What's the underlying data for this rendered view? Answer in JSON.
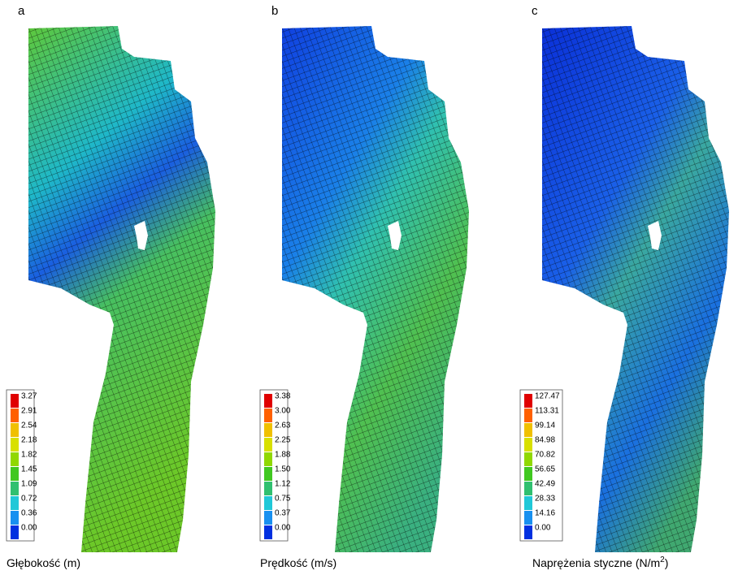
{
  "panels": [
    {
      "label": "a",
      "legend": [
        "3.27",
        "2.91",
        "2.54",
        "2.18",
        "1.82",
        "1.45",
        "1.09",
        "0.72",
        "0.36",
        "0.00"
      ],
      "caption": [
        "Głębokość (m)"
      ]
    },
    {
      "label": "b",
      "legend": [
        "3.38",
        "3.00",
        "2.63",
        "2.25",
        "1.88",
        "1.50",
        "1.12",
        "0.75",
        "0.37",
        "0.00"
      ],
      "caption": [
        "Prędkość (m/s)"
      ]
    },
    {
      "label": "c",
      "legend": [
        "127.47",
        "113.31",
        "99.14",
        "84.98",
        "70.82",
        "56.65",
        "42.49",
        "28.33",
        "14.16",
        "0.00"
      ],
      "caption": [
        "Naprężenia styczne (N/m",
        "2",
        ")"
      ]
    }
  ]
}
